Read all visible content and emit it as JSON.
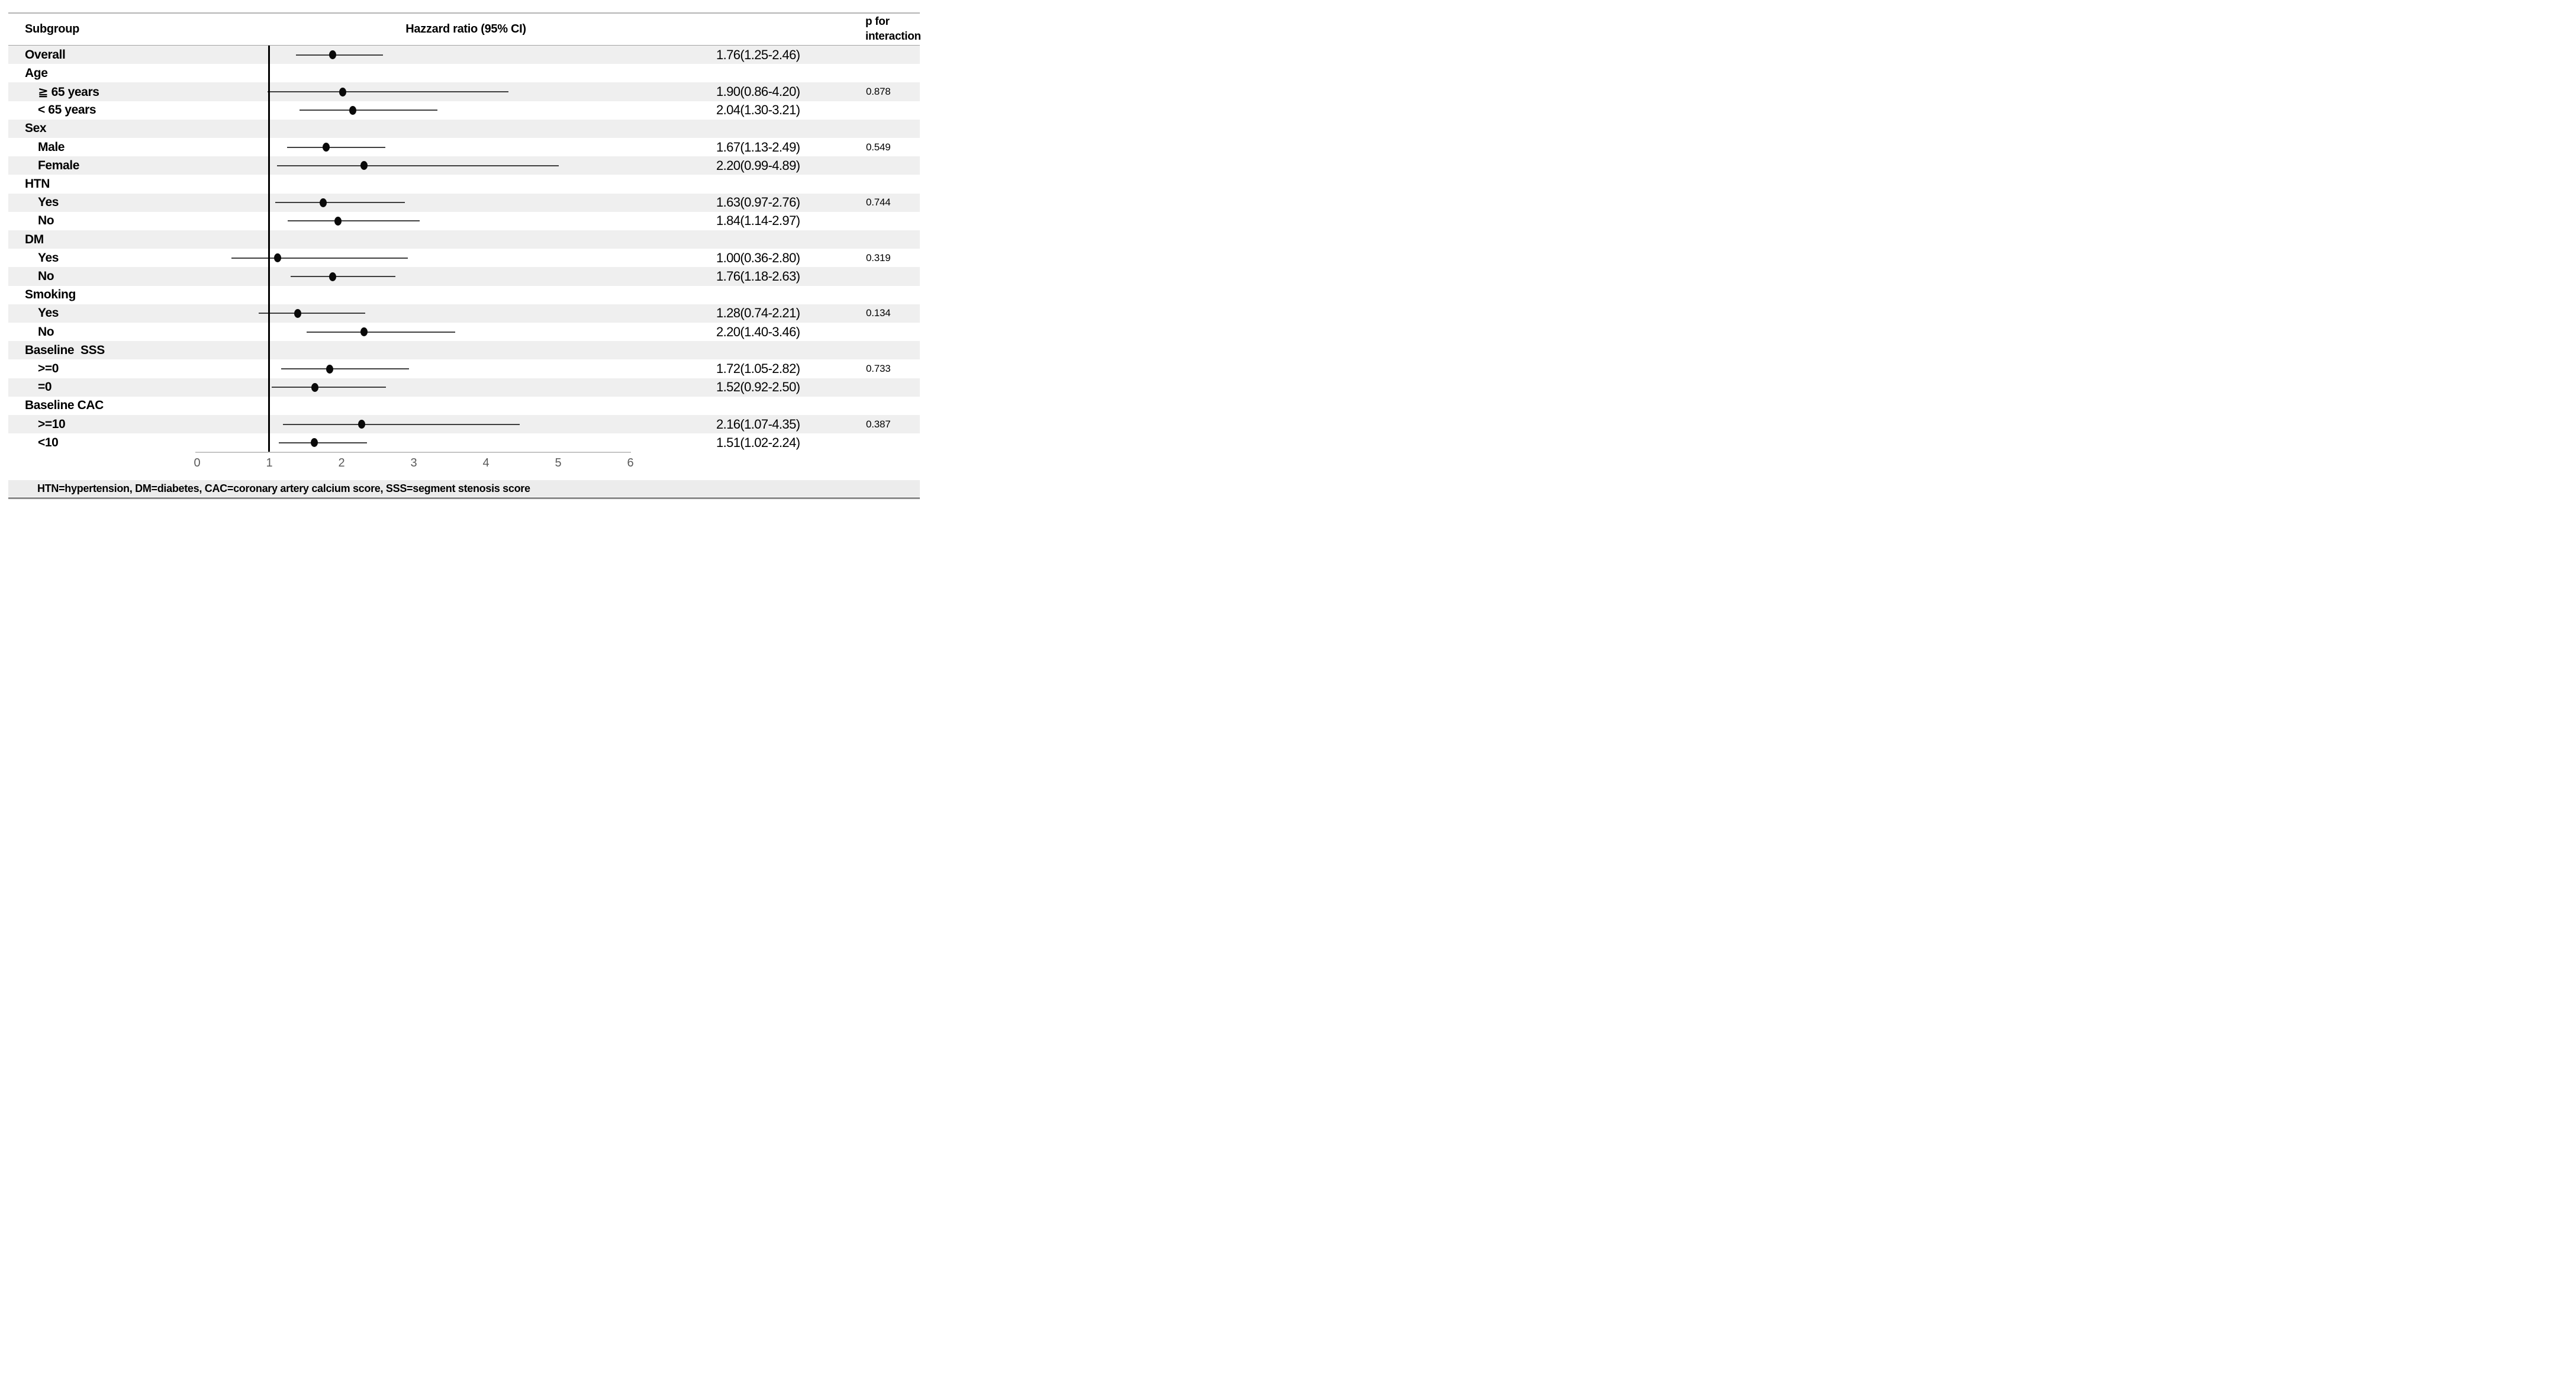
{
  "header": {
    "subgroup_label": "Subgroup",
    "hr_title": "Hazzard ratio (95% CI)",
    "p_title_line1": "p for",
    "p_title_line2": "interaction"
  },
  "axis": {
    "min": 0,
    "max": 6,
    "ticks": [
      "0",
      "1",
      "2",
      "3",
      "4",
      "5",
      "6"
    ],
    "reference_value": 1
  },
  "rows": [
    {
      "label": "Overall",
      "level": "group",
      "hr": 1.76,
      "lo": 1.25,
      "hi": 2.46,
      "hr_text": "1.76(1.25-2.46)",
      "p": ""
    },
    {
      "label": "Age",
      "level": "group",
      "hr": null,
      "lo": null,
      "hi": null,
      "hr_text": "",
      "p": ""
    },
    {
      "label": "≧ 65 years",
      "level": "item",
      "hr": 1.9,
      "lo": 0.86,
      "hi": 4.2,
      "hr_text": "1.90(0.86-4.20)",
      "p": "0.878"
    },
    {
      "label": "< 65 years",
      "level": "item",
      "hr": 2.04,
      "lo": 1.3,
      "hi": 3.21,
      "hr_text": "2.04(1.30-3.21)",
      "p": ""
    },
    {
      "label": "Sex",
      "level": "group",
      "hr": null,
      "lo": null,
      "hi": null,
      "hr_text": "",
      "p": ""
    },
    {
      "label": "Male",
      "level": "item",
      "hr": 1.67,
      "lo": 1.13,
      "hi": 2.49,
      "hr_text": "1.67(1.13-2.49)",
      "p": "0.549"
    },
    {
      "label": "Female",
      "level": "item",
      "hr": 2.2,
      "lo": 0.99,
      "hi": 4.89,
      "hr_text": "2.20(0.99-4.89)",
      "p": ""
    },
    {
      "label": "HTN",
      "level": "group",
      "hr": null,
      "lo": null,
      "hi": null,
      "hr_text": "",
      "p": ""
    },
    {
      "label": "Yes",
      "level": "item",
      "hr": 1.63,
      "lo": 0.97,
      "hi": 2.76,
      "hr_text": "1.63(0.97-2.76)",
      "p": "0.744"
    },
    {
      "label": "No",
      "level": "item",
      "hr": 1.84,
      "lo": 1.14,
      "hi": 2.97,
      "hr_text": "1.84(1.14-2.97)",
      "p": ""
    },
    {
      "label": "DM",
      "level": "group",
      "hr": null,
      "lo": null,
      "hi": null,
      "hr_text": "",
      "p": ""
    },
    {
      "label": "Yes",
      "level": "item",
      "hr": 1.0,
      "lo": 0.36,
      "hi": 2.8,
      "hr_text": "1.00(0.36-2.80)",
      "p": "0.319"
    },
    {
      "label": "No",
      "level": "item",
      "hr": 1.76,
      "lo": 1.18,
      "hi": 2.63,
      "hr_text": "1.76(1.18-2.63)",
      "p": ""
    },
    {
      "label": "Smoking",
      "level": "group",
      "hr": null,
      "lo": null,
      "hi": null,
      "hr_text": "",
      "p": ""
    },
    {
      "label": "Yes",
      "level": "item",
      "hr": 1.28,
      "lo": 0.74,
      "hi": 2.21,
      "hr_text": "1.28(0.74-2.21)",
      "p": "0.134"
    },
    {
      "label": "No",
      "level": "item",
      "hr": 2.2,
      "lo": 1.4,
      "hi": 3.46,
      "hr_text": "2.20(1.40-3.46)",
      "p": ""
    },
    {
      "label": "Baseline  SSS",
      "level": "group",
      "hr": null,
      "lo": null,
      "hi": null,
      "hr_text": "",
      "p": ""
    },
    {
      "label": ">=0",
      "level": "item",
      "hr": 1.72,
      "lo": 1.05,
      "hi": 2.82,
      "hr_text": "1.72(1.05-2.82)",
      "p": "0.733"
    },
    {
      "label": "=0",
      "level": "item",
      "hr": 1.52,
      "lo": 0.92,
      "hi": 2.5,
      "hr_text": "1.52(0.92-2.50)",
      "p": ""
    },
    {
      "label": "Baseline CAC",
      "level": "group",
      "hr": null,
      "lo": null,
      "hi": null,
      "hr_text": "",
      "p": ""
    },
    {
      "label": ">=10",
      "level": "item",
      "hr": 2.16,
      "lo": 1.07,
      "hi": 4.35,
      "hr_text": "2.16(1.07-4.35)",
      "p": "0.387"
    },
    {
      "label": "<10",
      "level": "item",
      "hr": 1.51,
      "lo": 1.02,
      "hi": 2.24,
      "hr_text": "1.51(1.02-2.24)",
      "p": ""
    }
  ],
  "footer": {
    "note": "HTN=hypertension, DM=diabetes, CAC=coronary artery calcium score, SSS=segment stenosis score"
  },
  "colors": {
    "stripe": "#efefef",
    "ci_line": "#3f3f3f",
    "marker": "#0a0a0a",
    "reference_line": "#000000",
    "axis_line": "#c4c4c4",
    "tick_text": "#595959",
    "border": "#8a8a8a"
  },
  "chart_data": {
    "type": "scatter",
    "subtype": "forest-plot",
    "title": "Hazzard ratio (95% CI)",
    "xlabel": "",
    "ylabel": "",
    "xlim": [
      0,
      6
    ],
    "x_ticks": [
      0,
      1,
      2,
      3,
      4,
      5,
      6
    ],
    "reference_line_x": 1,
    "grid": false,
    "legend": false,
    "categories": [
      "Overall",
      "Age ≧ 65 years",
      "Age < 65 years",
      "Sex Male",
      "Sex Female",
      "HTN Yes",
      "HTN No",
      "DM Yes",
      "DM No",
      "Smoking Yes",
      "Smoking No",
      "Baseline SSS >=0",
      "Baseline SSS =0",
      "Baseline CAC >=10",
      "Baseline CAC <10"
    ],
    "series": [
      {
        "name": "Hazard ratio",
        "values": [
          1.76,
          1.9,
          2.04,
          1.67,
          2.2,
          1.63,
          1.84,
          1.0,
          1.76,
          1.28,
          2.2,
          1.72,
          1.52,
          2.16,
          1.51
        ]
      },
      {
        "name": "CI lower",
        "values": [
          1.25,
          0.86,
          1.3,
          1.13,
          0.99,
          0.97,
          1.14,
          0.36,
          1.18,
          0.74,
          1.4,
          1.05,
          0.92,
          1.07,
          1.02
        ]
      },
      {
        "name": "CI upper",
        "values": [
          2.46,
          4.2,
          3.21,
          2.49,
          4.89,
          2.76,
          2.97,
          2.8,
          2.63,
          2.21,
          3.46,
          2.82,
          2.5,
          4.35,
          2.24
        ]
      },
      {
        "name": "p for interaction",
        "values": [
          null,
          0.878,
          null,
          0.549,
          null,
          0.744,
          null,
          0.319,
          null,
          0.134,
          null,
          0.733,
          null,
          0.387,
          null
        ]
      }
    ]
  }
}
